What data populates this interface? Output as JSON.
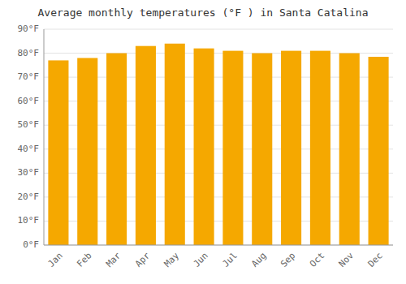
{
  "chart_data": {
    "type": "bar",
    "title": "Average monthly temperatures (°F ) in Santa Catalina",
    "categories": [
      "Jan",
      "Feb",
      "Mar",
      "Apr",
      "May",
      "Jun",
      "Jul",
      "Aug",
      "Sep",
      "Oct",
      "Nov",
      "Dec"
    ],
    "values": [
      77,
      78,
      80,
      83,
      84,
      82,
      81,
      80,
      81,
      81,
      80,
      78.5
    ],
    "color": "#F5A800",
    "ylim": [
      0,
      90
    ],
    "yticks": [
      {
        "value": 0,
        "label": "0°F"
      },
      {
        "value": 10,
        "label": "10°F"
      },
      {
        "value": 20,
        "label": "20°F"
      },
      {
        "value": 30,
        "label": "30°F"
      },
      {
        "value": 40,
        "label": "40°F"
      },
      {
        "value": 50,
        "label": "50°F"
      },
      {
        "value": 60,
        "label": "60°F"
      },
      {
        "value": 70,
        "label": "70°F"
      },
      {
        "value": 80,
        "label": "80°F"
      },
      {
        "value": 90,
        "label": "90°F"
      }
    ],
    "grid": true
  }
}
